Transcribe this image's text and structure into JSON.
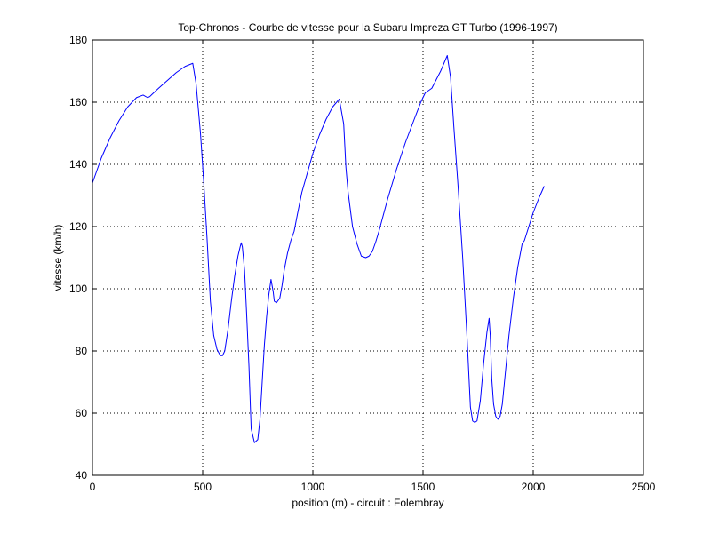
{
  "chart_data": {
    "type": "line",
    "title": "Top-Chronos - Courbe de vitesse pour la Subaru Impreza GT Turbo (1996-1997)",
    "xlabel": "position (m) - circuit : Folembray",
    "ylabel": "vitesse (km/h)",
    "xlim": [
      0,
      2500
    ],
    "ylim": [
      40,
      180
    ],
    "xticks": [
      0,
      500,
      1000,
      1500,
      2000,
      2500
    ],
    "yticks": [
      40,
      60,
      80,
      100,
      120,
      140,
      160,
      180
    ],
    "x_tick_labels": [
      "0",
      "500",
      "1000",
      "1500",
      "2000",
      "2500"
    ],
    "y_tick_labels": [
      "40",
      "60",
      "80",
      "100",
      "120",
      "140",
      "160",
      "180"
    ],
    "grid": true,
    "line_color": "#0000ff",
    "series": [
      {
        "x": [
          0,
          40,
          80,
          120,
          160,
          200,
          230,
          250,
          260,
          270,
          300,
          340,
          380,
          420,
          455,
          470,
          490,
          505,
          520,
          535,
          550,
          565,
          580,
          590,
          600,
          615,
          630,
          645,
          660,
          670,
          675,
          680,
          690,
          700,
          710,
          720,
          735,
          750,
          760,
          770,
          780,
          790,
          800,
          810,
          820,
          825,
          835,
          850,
          860,
          870,
          885,
          900,
          915,
          930,
          950,
          980,
          1000,
          1030,
          1060,
          1090,
          1120,
          1140,
          1150,
          1160,
          1180,
          1200,
          1220,
          1240,
          1255,
          1270,
          1285,
          1300,
          1340,
          1380,
          1420,
          1460,
          1490,
          1510,
          1540,
          1580,
          1610,
          1625,
          1640,
          1660,
          1680,
          1700,
          1715,
          1725,
          1735,
          1745,
          1760,
          1775,
          1790,
          1800,
          1805,
          1812,
          1820,
          1830,
          1840,
          1850,
          1860,
          1875,
          1890,
          1910,
          1930,
          1950,
          1960,
          1980,
          2000,
          2025,
          2050
        ],
        "y": [
          134,
          142,
          148.5,
          154,
          158.5,
          161.5,
          162.3,
          161.5,
          161.8,
          162.5,
          164.5,
          167,
          169.5,
          171.5,
          172.5,
          166,
          150,
          134,
          116,
          96,
          85,
          80.5,
          78.5,
          78.5,
          80,
          87,
          96,
          104,
          110.5,
          113.5,
          114.8,
          113.5,
          106,
          91,
          75,
          55,
          50.5,
          51.5,
          58,
          70,
          82,
          91,
          98,
          103,
          99,
          96,
          95.5,
          97,
          101,
          106,
          111.5,
          115.5,
          118.5,
          124,
          131,
          138.5,
          143.5,
          149.5,
          154.5,
          158.5,
          161,
          153,
          139,
          131,
          120,
          114.5,
          110.5,
          110,
          110.5,
          112,
          115,
          118.5,
          129,
          138.5,
          147,
          154.5,
          160,
          163,
          164.5,
          170,
          175,
          168,
          152,
          132,
          110,
          84,
          62,
          57.5,
          57,
          57.5,
          64,
          76,
          86,
          90.5,
          85,
          71,
          63,
          59,
          58,
          59,
          63,
          74,
          85,
          97,
          107,
          114.5,
          115.5,
          120,
          124.5,
          129,
          133
        ]
      }
    ]
  }
}
